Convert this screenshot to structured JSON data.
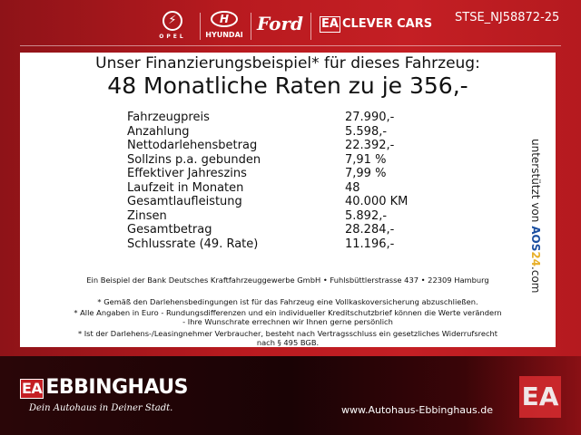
{
  "header": {
    "brands": [
      "OPEL",
      "HYUNDAI",
      "Ford",
      "CLEVER CARS"
    ],
    "clever_prefix": "EA",
    "reference": "STSE_NJ58872-25"
  },
  "offer": {
    "subtitle": "Unser Finanzierungsbeispiel* für dieses Fahrzeug:",
    "title": "48 Monatliche Raten zu je 356,-",
    "rows": [
      {
        "label": "Fahrzeugpreis",
        "value": "27.990,-"
      },
      {
        "label": "Anzahlung",
        "value": "5.598,-"
      },
      {
        "label": "Nettodarlehensbetrag",
        "value": "22.392,-"
      },
      {
        "label": "Sollzins p.a. gebunden",
        "value": "7,91 %"
      },
      {
        "label": "Effektiver Jahreszins",
        "value": "7,99 %"
      },
      {
        "label": "Laufzeit in Monaten",
        "value": "48"
      },
      {
        "label": "Gesamtlaufleistung",
        "value": "40.000 KM"
      },
      {
        "label": "Zinsen",
        "value": "5.892,-"
      },
      {
        "label": "Gesamtbetrag",
        "value": "28.284,-"
      },
      {
        "label": "Schlussrate (49. Rate)",
        "value": "11.196,-"
      }
    ],
    "supported_by": "unterstützt von",
    "aos_a": "AOS",
    "aos_b": "24",
    "aos_c": ".com",
    "bank": "Ein Beispiel der Bank Deutsches Kraftfahrzeuggewerbe GmbH • Fuhlsbüttlerstrasse 437 • 22309 Hamburg",
    "notes": [
      "* Gemäß den Darlehensbedingungen ist für das Fahrzeug eine Vollkaskoversicherung abzuschließen.",
      "* Alle Angaben in Euro - Rundungsdifferenzen und ein individueller Kreditschutzbrief können die Werte verändern",
      "- Ihre Wunschrate errechnen wir Ihnen gerne persönlich",
      "* Ist der Darlehens-/Leasingnehmer Verbraucher, besteht nach Vertragsschluss ein gesetzliches Widerrufsrecht",
      "nach § 495 BGB."
    ]
  },
  "footer": {
    "logo_prefix": "EA",
    "name": "EBBINGHAUS",
    "slogan": "Dein Autohaus in Deiner Stadt.",
    "website": "www.Autohaus-Ebbinghaus.de",
    "badge": "EA"
  },
  "colors": {
    "brand_red": "#c41f24",
    "dark": "#1a0305"
  }
}
